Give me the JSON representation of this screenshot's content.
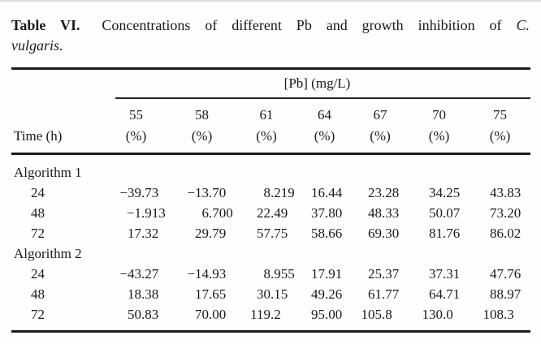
{
  "title": {
    "label": "Table VI.",
    "text": "Concentrations of different Pb and growth inhibition of",
    "species_abbrev": "C.",
    "species_rest": "vulgaris."
  },
  "table": {
    "group_header": "[Pb] (mg/L)",
    "time_header": "Time (h)",
    "columns": [
      {
        "conc": "55",
        "unit": "(%)"
      },
      {
        "conc": "58",
        "unit": "(%)"
      },
      {
        "conc": "61",
        "unit": "(%)"
      },
      {
        "conc": "64",
        "unit": "(%)"
      },
      {
        "conc": "67",
        "unit": "(%)"
      },
      {
        "conc": "70",
        "unit": "(%)"
      },
      {
        "conc": "75",
        "unit": "(%)"
      }
    ],
    "sections": [
      {
        "label": "Algorithm 1",
        "rows": [
          {
            "time": "24",
            "values": [
              "−39.73",
              "−13.70",
              "8.219",
              "16.44",
              "23.28",
              "34.25",
              "43.83"
            ]
          },
          {
            "time": "48",
            "values": [
              "−1.913",
              "6.700",
              "22.49",
              "37.80",
              "48.33",
              "50.07",
              "73.20"
            ]
          },
          {
            "time": "72",
            "values": [
              "17.32",
              "29.79",
              "57.75",
              "58.66",
              "69.30",
              "81.76",
              "86.02"
            ]
          }
        ]
      },
      {
        "label": "Algorithm 2",
        "rows": [
          {
            "time": "24",
            "values": [
              "−43.27",
              "−14.93",
              "8.955",
              "17.91",
              "25.37",
              "37.31",
              "47.76"
            ]
          },
          {
            "time": "48",
            "values": [
              "18.38",
              "17.65",
              "30.15",
              "49.26",
              "61.77",
              "64.71",
              "88.97"
            ]
          },
          {
            "time": "72",
            "values": [
              "50.83",
              "70.00",
              "119.2",
              "95.00",
              "105.8",
              "130.0",
              "108.3"
            ]
          }
        ]
      }
    ]
  },
  "colors": {
    "text": "#1a1a1a",
    "rule": "#1c1c1c",
    "background": "#fefefe"
  }
}
